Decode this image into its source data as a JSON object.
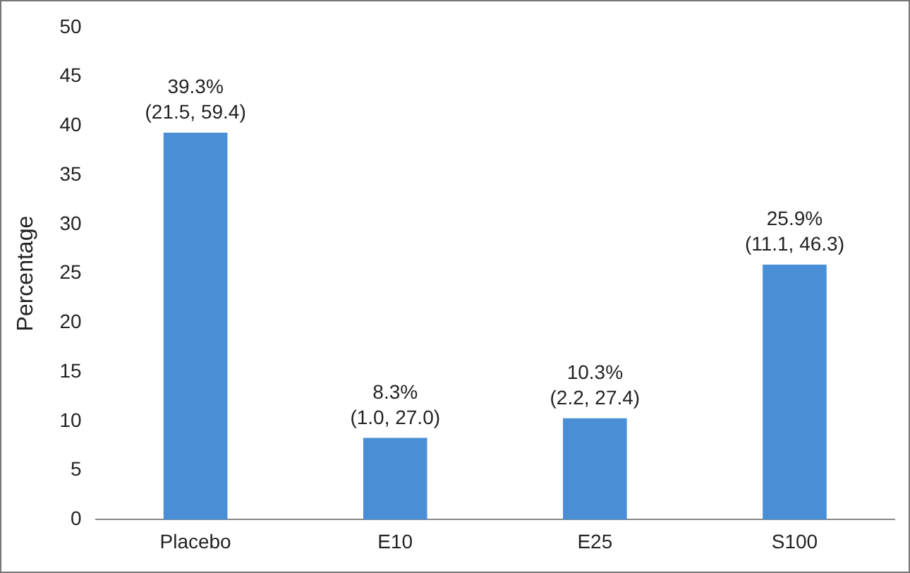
{
  "chart_data": {
    "type": "bar",
    "ylabel": "Percentage",
    "categories": [
      "Placebo",
      "E10",
      "E25",
      "S100"
    ],
    "values": [
      39.3,
      8.3,
      10.3,
      25.9
    ],
    "value_labels": [
      "39.3%\n(21.5, 59.4)",
      "8.3%\n(1.0, 27.0)",
      "10.3%\n(2.2, 27.4)",
      "25.9%\n(11.1, 46.3)"
    ],
    "color": "#4a8fd6",
    "ylim": [
      0,
      50
    ],
    "yticks": [
      0,
      5,
      10,
      15,
      20,
      25,
      30,
      35,
      40,
      45,
      50
    ],
    "grid": false,
    "legend": false
  }
}
